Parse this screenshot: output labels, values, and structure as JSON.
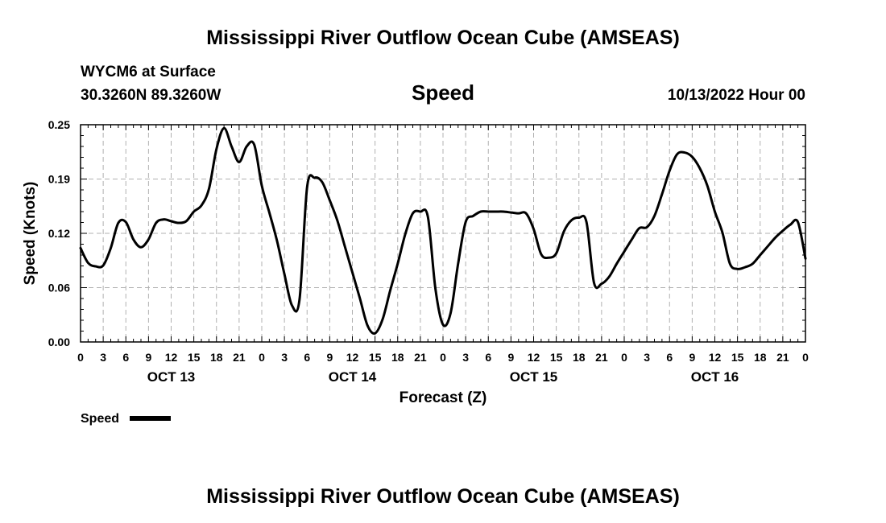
{
  "page": {
    "title_top": "Mississippi River Outflow Ocean Cube (AMSEAS)",
    "title_bottom": "Mississippi River Outflow Ocean Cube (AMSEAS)",
    "station": "WYCM6 at Surface",
    "coordinates": "30.3260N  89.3260W",
    "variable": "Speed",
    "datetime": "10/13/2022 Hour 00"
  },
  "chart_data": {
    "type": "line",
    "xlabel": "Forecast (Z)",
    "ylabel": "Speed (Knots)",
    "xlim": [
      0,
      96
    ],
    "ylim": [
      0,
      0.25
    ],
    "yticks": [
      "0.00",
      "0.06",
      "0.12",
      "0.19",
      "0.25"
    ],
    "ytick_values": [
      0,
      0.0625,
      0.125,
      0.1875,
      0.25
    ],
    "xtick_labels": [
      "0",
      "3",
      "6",
      "9",
      "12",
      "15",
      "18",
      "21",
      "0",
      "3",
      "6",
      "9",
      "12",
      "15",
      "18",
      "21",
      "0",
      "3",
      "6",
      "9",
      "12",
      "15",
      "18",
      "21",
      "0",
      "3",
      "6",
      "9",
      "12",
      "15",
      "18",
      "21",
      "0"
    ],
    "date_labels": [
      {
        "label": "OCT 13",
        "hour": 12
      },
      {
        "label": "OCT 14",
        "hour": 36
      },
      {
        "label": "OCT 15",
        "hour": 60
      },
      {
        "label": "OCT 16",
        "hour": 84
      }
    ],
    "grid": true,
    "series": [
      {
        "name": "Speed",
        "color": "#000000",
        "x": [
          0,
          1,
          2,
          3,
          4,
          5,
          6,
          7,
          8,
          9,
          10,
          11,
          12,
          13,
          14,
          15,
          16,
          17,
          18,
          19,
          20,
          21,
          22,
          23,
          24,
          25,
          26,
          27,
          28,
          29,
          30,
          31,
          32,
          33,
          34,
          35,
          36,
          37,
          38,
          39,
          40,
          41,
          42,
          43,
          44,
          45,
          46,
          47,
          48,
          49,
          50,
          51,
          52,
          53,
          54,
          55,
          56,
          57,
          58,
          59,
          60,
          61,
          62,
          63,
          64,
          65,
          66,
          67,
          68,
          69,
          70,
          71,
          72,
          73,
          74,
          75,
          76,
          77,
          78,
          79,
          80,
          81,
          82,
          83,
          84,
          85,
          86,
          87,
          88,
          89,
          90,
          91,
          92,
          93,
          94,
          95,
          96
        ],
        "values": [
          0.108,
          0.091,
          0.087,
          0.088,
          0.108,
          0.137,
          0.138,
          0.118,
          0.109,
          0.118,
          0.137,
          0.141,
          0.139,
          0.137,
          0.139,
          0.15,
          0.157,
          0.176,
          0.222,
          0.246,
          0.225,
          0.207,
          0.225,
          0.227,
          0.18,
          0.149,
          0.117,
          0.078,
          0.042,
          0.049,
          0.178,
          0.189,
          0.184,
          0.163,
          0.14,
          0.11,
          0.08,
          0.05,
          0.019,
          0.01,
          0.026,
          0.059,
          0.09,
          0.124,
          0.148,
          0.15,
          0.144,
          0.061,
          0.02,
          0.033,
          0.09,
          0.138,
          0.145,
          0.15,
          0.15,
          0.15,
          0.15,
          0.149,
          0.148,
          0.148,
          0.13,
          0.101,
          0.097,
          0.102,
          0.127,
          0.14,
          0.143,
          0.138,
          0.068,
          0.067,
          0.075,
          0.09,
          0.104,
          0.118,
          0.131,
          0.132,
          0.145,
          0.17,
          0.197,
          0.216,
          0.218,
          0.213,
          0.2,
          0.18,
          0.15,
          0.126,
          0.09,
          0.084,
          0.086,
          0.09,
          0.1,
          0.11,
          0.12,
          0.128,
          0.135,
          0.138,
          0.096
        ]
      }
    ],
    "legend": {
      "label": "Speed",
      "position": "bottom-left"
    }
  }
}
